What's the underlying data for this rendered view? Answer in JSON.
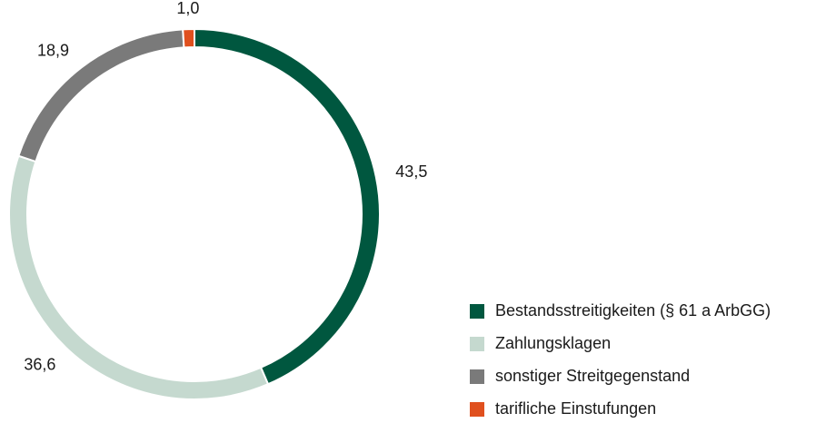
{
  "chart_data": {
    "type": "donut",
    "categories": [
      "Bestandsstreitigkeiten (§ 61 a ArbGG)",
      "Zahlungsklagen",
      "sonstiger Streitgegenstand",
      "tarifliche Einstufungen"
    ],
    "values": [
      43.5,
      36.6,
      18.9,
      1.0
    ],
    "value_labels": [
      "43,5",
      "36,6",
      "18,9",
      "1,0"
    ],
    "colors": [
      "#00573f",
      "#c5d9cf",
      "#7a7a7a",
      "#e0501e"
    ],
    "legend": "bottom-right"
  }
}
